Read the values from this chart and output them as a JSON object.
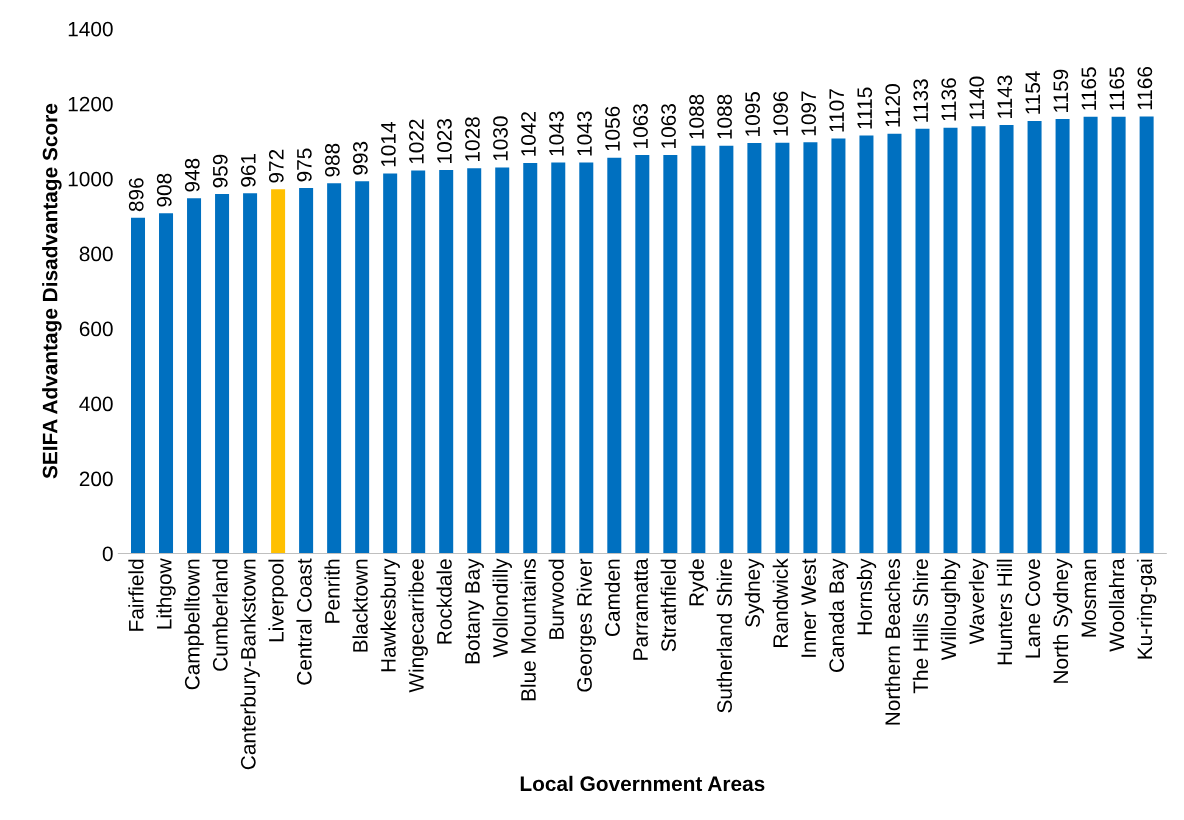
{
  "chart_data": {
    "type": "bar",
    "xlabel": "Local Government Areas",
    "ylabel": "SEIFA Advantage Disadvantage Score",
    "categories": [
      "Fairfield",
      "Lithgow",
      "Campbelltown",
      "Cumberland",
      "Canterbury-Bankstown",
      "Liverpool",
      "Central Coast",
      "Penrith",
      "Blacktown",
      "Hawkesbury",
      "Wingecarribee",
      "Rockdale",
      "Botany Bay",
      "Wollondilly",
      "Blue Mountains",
      "Burwood",
      "Georges River",
      "Camden",
      "Parramatta",
      "Strathfield",
      "Ryde",
      "Sutherland Shire",
      "Sydney",
      "Randwick",
      "Inner West",
      "Canada Bay",
      "Hornsby",
      "Northern Beaches",
      "The Hills Shire",
      "Willoughby",
      "Waverley",
      "Hunters Hill",
      "Lane Cove",
      "North Sydney",
      "Mosman",
      "Woollahra",
      "Ku-ring-gai"
    ],
    "values": [
      896,
      908,
      948,
      959,
      961,
      972,
      975,
      988,
      993,
      1014,
      1022,
      1023,
      1028,
      1030,
      1042,
      1043,
      1043,
      1056,
      1063,
      1063,
      1088,
      1088,
      1095,
      1096,
      1097,
      1107,
      1115,
      1120,
      1133,
      1136,
      1140,
      1143,
      1154,
      1159,
      1165,
      1165,
      1166
    ],
    "colors": [
      "#0070c0",
      "#0070c0",
      "#0070c0",
      "#0070c0",
      "#0070c0",
      "#ffc000",
      "#0070c0",
      "#0070c0",
      "#0070c0",
      "#0070c0",
      "#0070c0",
      "#0070c0",
      "#0070c0",
      "#0070c0",
      "#0070c0",
      "#0070c0",
      "#0070c0",
      "#0070c0",
      "#0070c0",
      "#0070c0",
      "#0070c0",
      "#0070c0",
      "#0070c0",
      "#0070c0",
      "#0070c0",
      "#0070c0",
      "#0070c0",
      "#0070c0",
      "#0070c0",
      "#0070c0",
      "#0070c0",
      "#0070c0",
      "#0070c0",
      "#0070c0",
      "#0070c0",
      "#0070c0",
      "#0070c0"
    ],
    "ylim": [
      0,
      1400
    ],
    "yticks": [
      0,
      200,
      400,
      600,
      800,
      1000,
      1200,
      1400
    ],
    "data_labels": true,
    "grid": false,
    "legend": false
  }
}
